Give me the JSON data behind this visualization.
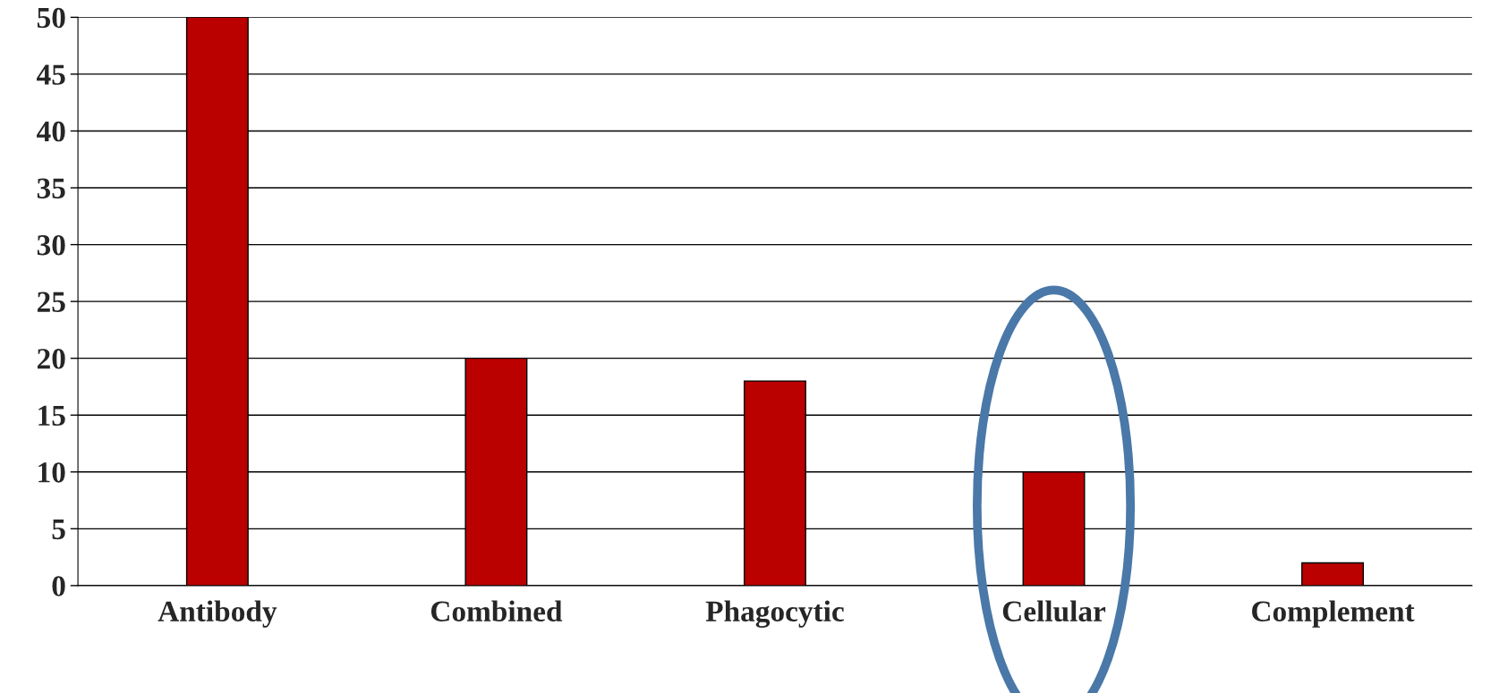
{
  "chart_data": {
    "type": "bar",
    "categories": [
      "Antibody",
      "Combined",
      "Phagocytic",
      "Cellular",
      "Complement"
    ],
    "values": [
      50,
      20,
      18,
      10,
      2
    ],
    "color": "#bb0000",
    "ylim": [
      0,
      50
    ],
    "yticks": [
      0,
      5,
      10,
      15,
      20,
      25,
      30,
      35,
      40,
      45,
      50
    ],
    "grid": "y",
    "legend": false
  }
}
